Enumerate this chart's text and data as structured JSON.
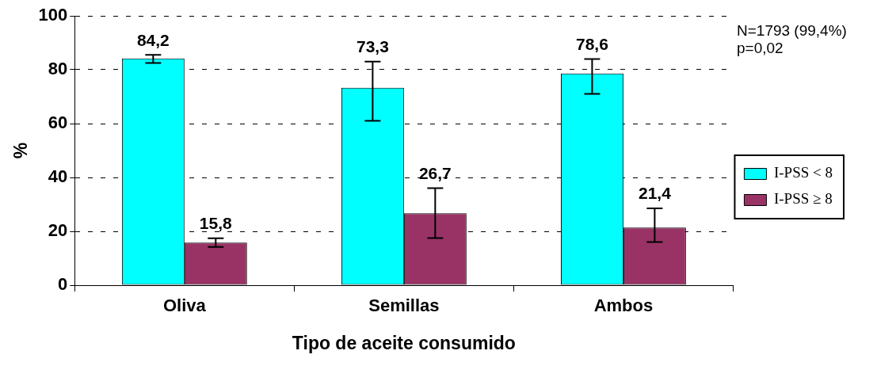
{
  "chart_data": {
    "type": "bar",
    "xlabel": "Tipo de aceite consumido",
    "ylabel": "%",
    "categories": [
      "Oliva",
      "Semillas",
      "Ambos"
    ],
    "series": [
      {
        "name": "I-PSS < 8",
        "color": "#00ffff",
        "values": [
          84.2,
          73.3,
          78.6
        ],
        "value_labels": [
          "84,2",
          "73,3",
          "78,6"
        ],
        "errors": [
          [
            82.5,
            85.5
          ],
          [
            61,
            83
          ],
          [
            71,
            84
          ]
        ]
      },
      {
        "name": "I-PSS ≥ 8",
        "color": "#993366",
        "values": [
          15.8,
          26.7,
          21.4
        ],
        "value_labels": [
          "15,8",
          "26,7",
          "21,4"
        ],
        "errors": [
          [
            14.2,
            17.4
          ],
          [
            17.5,
            36
          ],
          [
            16,
            28.5
          ]
        ]
      }
    ],
    "ylim": [
      0,
      100
    ],
    "yticks": [
      0,
      20,
      40,
      60,
      80,
      100
    ],
    "grid": "y",
    "legend": "right",
    "annotations": [
      "N=1793 (99,4%)",
      "p=0,02"
    ]
  }
}
